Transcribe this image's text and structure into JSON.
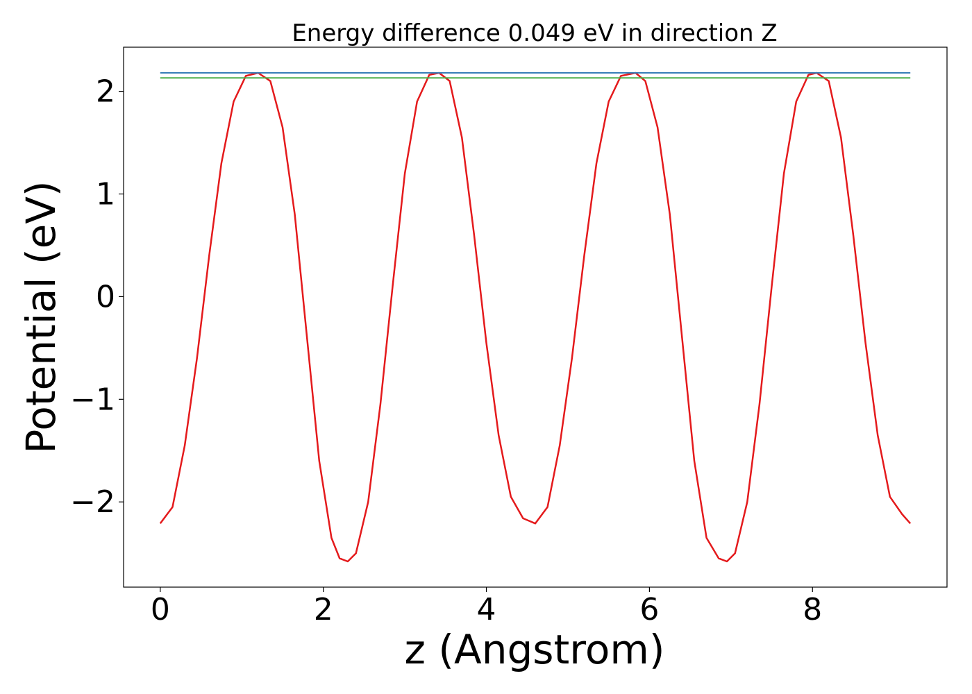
{
  "chart_data": {
    "type": "line",
    "title": "Energy difference 0.049 eV in direction Z",
    "xlabel": "z (Angstrom)",
    "ylabel": "Potential (eV)",
    "xlim": [
      -0.45,
      9.65
    ],
    "ylim": [
      -2.83,
      2.43
    ],
    "xticks": [
      0,
      2,
      4,
      6,
      8
    ],
    "xtick_labels": [
      "0",
      "2",
      "4",
      "6",
      "8"
    ],
    "yticks": [
      -2,
      -1,
      0,
      1,
      2
    ],
    "ytick_labels": [
      "−2",
      "−1",
      "0",
      "1",
      "2"
    ],
    "grid": false,
    "series": [
      {
        "color": "#e41a1c",
        "x": [
          0.0,
          0.15,
          0.3,
          0.45,
          0.6,
          0.75,
          0.9,
          1.05,
          1.2,
          1.35,
          1.5,
          1.65,
          1.8,
          1.95,
          2.1,
          2.2,
          2.3,
          2.4,
          2.55,
          2.7,
          2.85,
          3.0,
          3.15,
          3.3,
          3.42,
          3.55,
          3.7,
          3.85,
          4.0,
          4.15,
          4.3,
          4.45,
          4.6,
          4.75,
          4.9,
          5.05,
          5.2,
          5.35,
          5.5,
          5.65,
          5.83,
          5.95,
          6.1,
          6.25,
          6.4,
          6.55,
          6.7,
          6.85,
          6.95,
          7.05,
          7.2,
          7.35,
          7.5,
          7.65,
          7.8,
          7.95,
          8.05,
          8.2,
          8.35,
          8.5,
          8.65,
          8.8,
          8.95,
          9.1,
          9.2
        ],
        "y": [
          -2.21,
          -2.05,
          -1.45,
          -0.6,
          0.4,
          1.3,
          1.9,
          2.15,
          2.18,
          2.1,
          1.65,
          0.8,
          -0.4,
          -1.6,
          -2.35,
          -2.55,
          -2.58,
          -2.5,
          -2.0,
          -1.05,
          0.1,
          1.2,
          1.9,
          2.16,
          2.18,
          2.1,
          1.55,
          0.6,
          -0.45,
          -1.35,
          -1.95,
          -2.16,
          -2.21,
          -2.05,
          -1.45,
          -0.6,
          0.4,
          1.3,
          1.9,
          2.15,
          2.18,
          2.1,
          1.65,
          0.8,
          -0.4,
          -1.6,
          -2.35,
          -2.55,
          -2.58,
          -2.5,
          -2.0,
          -1.05,
          0.1,
          1.2,
          1.9,
          2.16,
          2.18,
          2.1,
          1.55,
          0.6,
          -0.45,
          -1.35,
          -1.95,
          -2.12,
          -2.21
        ]
      },
      {
        "color": "#377eb8",
        "x": [
          0.0,
          9.2
        ],
        "y": [
          2.18,
          2.18
        ]
      },
      {
        "color": "#4daf4a",
        "x": [
          0.0,
          9.2
        ],
        "y": [
          2.131,
          2.131
        ]
      }
    ]
  }
}
